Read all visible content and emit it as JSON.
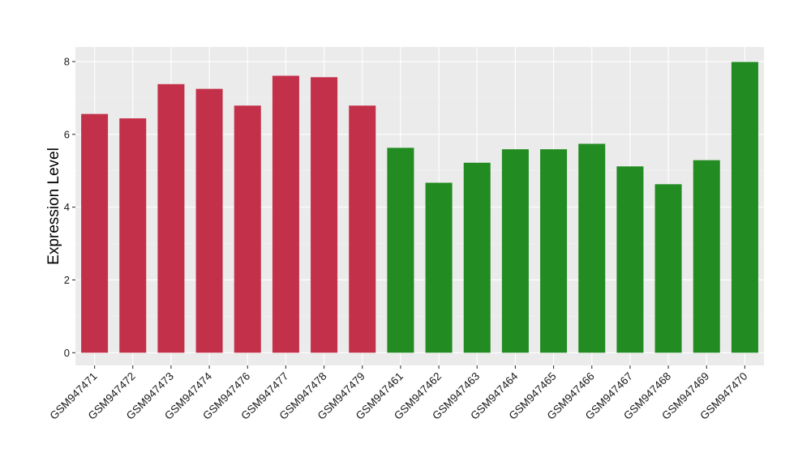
{
  "chart_data": {
    "type": "bar",
    "title": "",
    "xlabel": "",
    "ylabel": "Expression Level",
    "ylim": [
      -0.35,
      8.4
    ],
    "yticks": [
      0,
      2,
      4,
      6,
      8
    ],
    "grid": true,
    "legend": "none",
    "categories": [
      "GSM947471",
      "GSM947472",
      "GSM947473",
      "GSM947474",
      "GSM947476",
      "GSM947477",
      "GSM947478",
      "GSM947479",
      "GSM947461",
      "GSM947462",
      "GSM947463",
      "GSM947464",
      "GSM947465",
      "GSM947466",
      "GSM947467",
      "GSM947468",
      "GSM947469",
      "GSM947470"
    ],
    "values": [
      6.56,
      6.44,
      7.38,
      7.25,
      6.79,
      7.61,
      7.57,
      6.79,
      5.63,
      4.67,
      5.22,
      5.59,
      5.59,
      5.74,
      5.12,
      4.63,
      5.29,
      7.99
    ],
    "bar_colors": [
      "#C3304A",
      "#C3304A",
      "#C3304A",
      "#C3304A",
      "#C3304A",
      "#C3304A",
      "#C3304A",
      "#C3304A",
      "#228B22",
      "#228B22",
      "#228B22",
      "#228B22",
      "#228B22",
      "#228B22",
      "#228B22",
      "#228B22",
      "#228B22",
      "#228B22"
    ]
  },
  "style": {
    "panel_bg": "#EBEBEB",
    "grid_major": "#FFFFFF",
    "grid_minor": "#F5F5F5",
    "tick_color": "#333333"
  }
}
